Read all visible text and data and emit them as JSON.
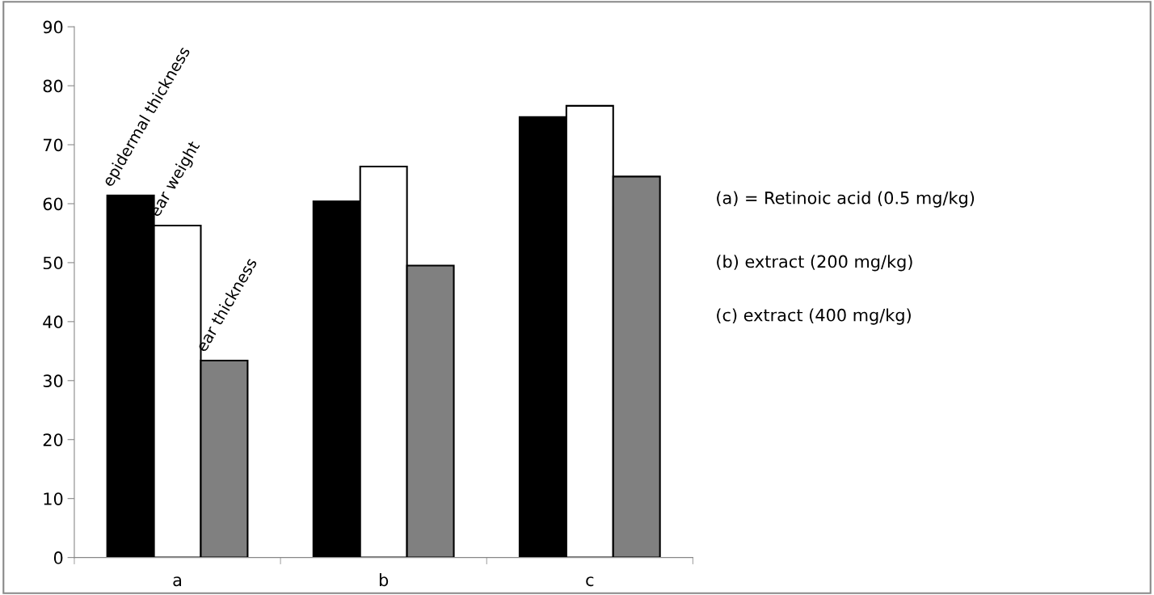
{
  "chart_data": {
    "type": "bar",
    "categories": [
      "a",
      "b",
      "c"
    ],
    "series": [
      {
        "name": "epidermal thickness",
        "color": "#000000",
        "values": [
          61.4,
          60.4,
          74.7
        ]
      },
      {
        "name": "ear weight",
        "color": "#ffffff",
        "values": [
          56.3,
          66.3,
          76.6
        ]
      },
      {
        "name": "ear thickness",
        "color": "#808080",
        "values": [
          33.4,
          49.5,
          64.6
        ]
      }
    ],
    "ylim": [
      0,
      90
    ],
    "yticks": [
      0,
      10,
      20,
      30,
      40,
      50,
      60,
      70,
      80,
      90
    ],
    "grid": false,
    "legend": false,
    "annotations": [
      "(a) = Retinoic acid (0.5 mg/kg)",
      "(b) extract (200 mg/kg)",
      "(c) extract (400 mg/kg)"
    ]
  }
}
